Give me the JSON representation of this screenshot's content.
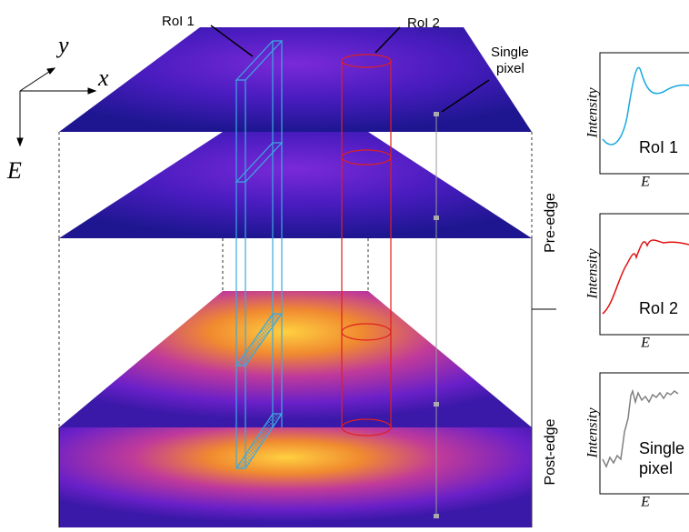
{
  "axes": {
    "y": "y",
    "x": "x",
    "e": "E"
  },
  "callouts": {
    "roi1": "RoI 1",
    "roi2": "RoI 2",
    "pixel": [
      "Single",
      "pixel"
    ]
  },
  "stages": [
    "Pre-edge",
    "Post-edge"
  ],
  "insets": [
    {
      "y_label": "Intensity",
      "x_label": "E",
      "label": [
        "RoI 1"
      ]
    },
    {
      "y_label": "Intensity",
      "x_label": "E",
      "label": [
        "RoI 2"
      ]
    },
    {
      "y_label": "Intensity",
      "x_label": "E",
      "label": [
        "Single",
        "pixel"
      ]
    }
  ]
}
